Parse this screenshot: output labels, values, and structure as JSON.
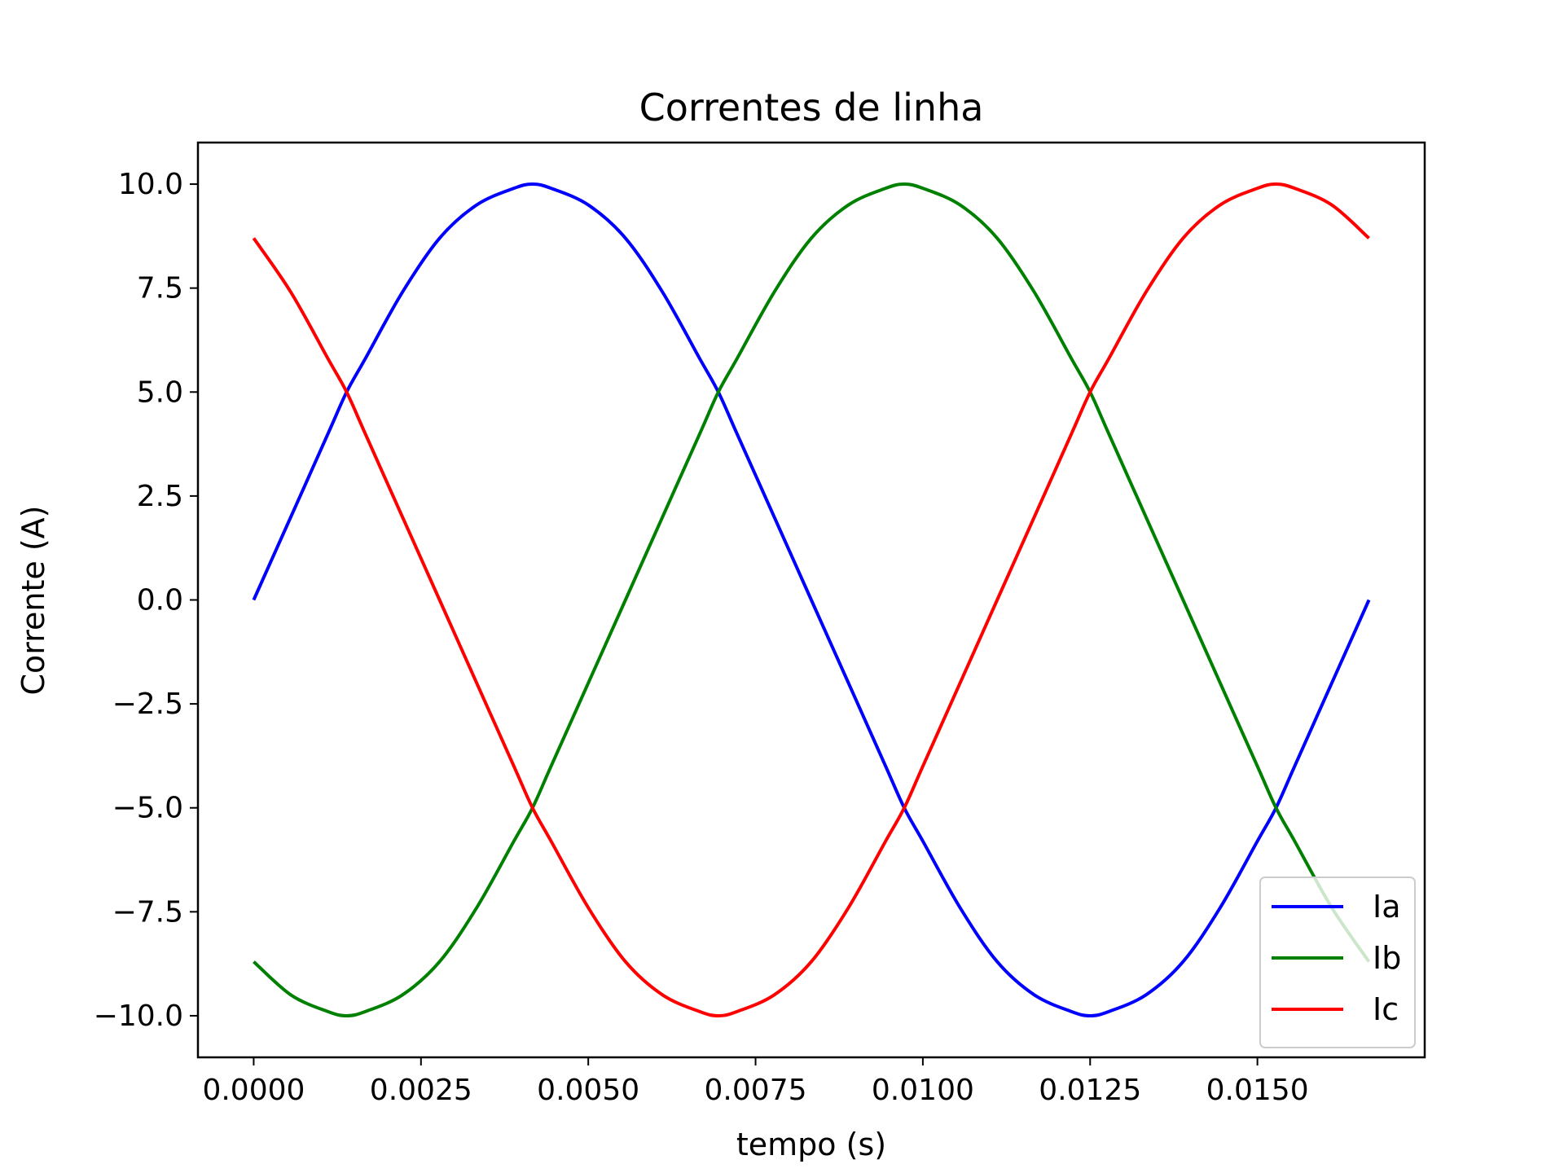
{
  "chart_data": {
    "type": "line",
    "title": "Correntes de linha",
    "xlabel": "tempo (s)",
    "ylabel": "Corrente (A)",
    "xlim": [
      -0.000833,
      0.0175
    ],
    "ylim": [
      -11.0,
      11.0
    ],
    "xticks": [
      0.0,
      0.0025,
      0.005,
      0.0075,
      0.01,
      0.0125,
      0.015
    ],
    "xtick_labels": [
      "0.0000",
      "0.0025",
      "0.0050",
      "0.0075",
      "0.0100",
      "0.0125",
      "0.0150"
    ],
    "yticks": [
      10.0,
      7.5,
      5.0,
      2.5,
      0.0,
      -2.5,
      -5.0,
      -7.5,
      -10.0
    ],
    "ytick_labels": [
      "10.0",
      "7.5",
      "5.0",
      "2.5",
      "0.0",
      "−2.5",
      "−5.0",
      "−7.5",
      "−10.0"
    ],
    "grid": false,
    "legend_position": "lower-right",
    "x": [
      0.0,
      0.000556,
      0.001111,
      0.001389,
      0.001667,
      0.002222,
      0.002778,
      0.003333,
      0.003889,
      0.004167,
      0.004444,
      0.005,
      0.005556,
      0.006111,
      0.006667,
      0.006944,
      0.007222,
      0.007778,
      0.008333,
      0.008889,
      0.009444,
      0.009722,
      0.01,
      0.010556,
      0.011111,
      0.011667,
      0.012222,
      0.0125,
      0.012778,
      0.013333,
      0.013889,
      0.014444,
      0.015,
      0.015278,
      0.015556,
      0.016111,
      0.016667
    ],
    "series": [
      {
        "name": "Ia",
        "color": "#0000ff",
        "values": [
          0.0,
          2.0,
          4.0,
          5.0,
          5.8,
          7.4,
          8.7,
          9.5,
          9.9,
          10.0,
          9.9,
          9.5,
          8.7,
          7.4,
          5.8,
          5.0,
          4.0,
          2.0,
          0.0,
          -2.0,
          -4.0,
          -5.0,
          -5.8,
          -7.4,
          -8.7,
          -9.5,
          -9.9,
          -10.0,
          -9.9,
          -9.5,
          -8.7,
          -7.4,
          -5.8,
          -5.0,
          -4.0,
          -2.0,
          0.0
        ]
      },
      {
        "name": "Ib",
        "color": "#008000",
        "values": [
          -8.7,
          -9.5,
          -9.9,
          -10.0,
          -9.9,
          -9.5,
          -8.7,
          -7.4,
          -5.8,
          -5.0,
          -4.0,
          -2.0,
          0.0,
          2.0,
          4.0,
          5.0,
          5.8,
          7.4,
          8.7,
          9.5,
          9.9,
          10.0,
          9.9,
          9.5,
          8.7,
          7.4,
          5.8,
          5.0,
          4.0,
          2.0,
          0.0,
          -2.0,
          -4.0,
          -5.0,
          -5.8,
          -7.4,
          -8.7
        ]
      },
      {
        "name": "Ic",
        "color": "#ff0000",
        "values": [
          8.7,
          7.4,
          5.8,
          5.0,
          4.0,
          2.0,
          0.0,
          -2.0,
          -4.0,
          -5.0,
          -5.8,
          -7.4,
          -8.7,
          -9.5,
          -9.9,
          -10.0,
          -9.9,
          -9.5,
          -8.7,
          -7.4,
          -5.8,
          -5.0,
          -4.0,
          -2.0,
          0.0,
          2.0,
          4.0,
          5.0,
          5.8,
          7.4,
          8.7,
          9.5,
          9.9,
          10.0,
          9.9,
          9.5,
          8.7
        ]
      }
    ]
  }
}
